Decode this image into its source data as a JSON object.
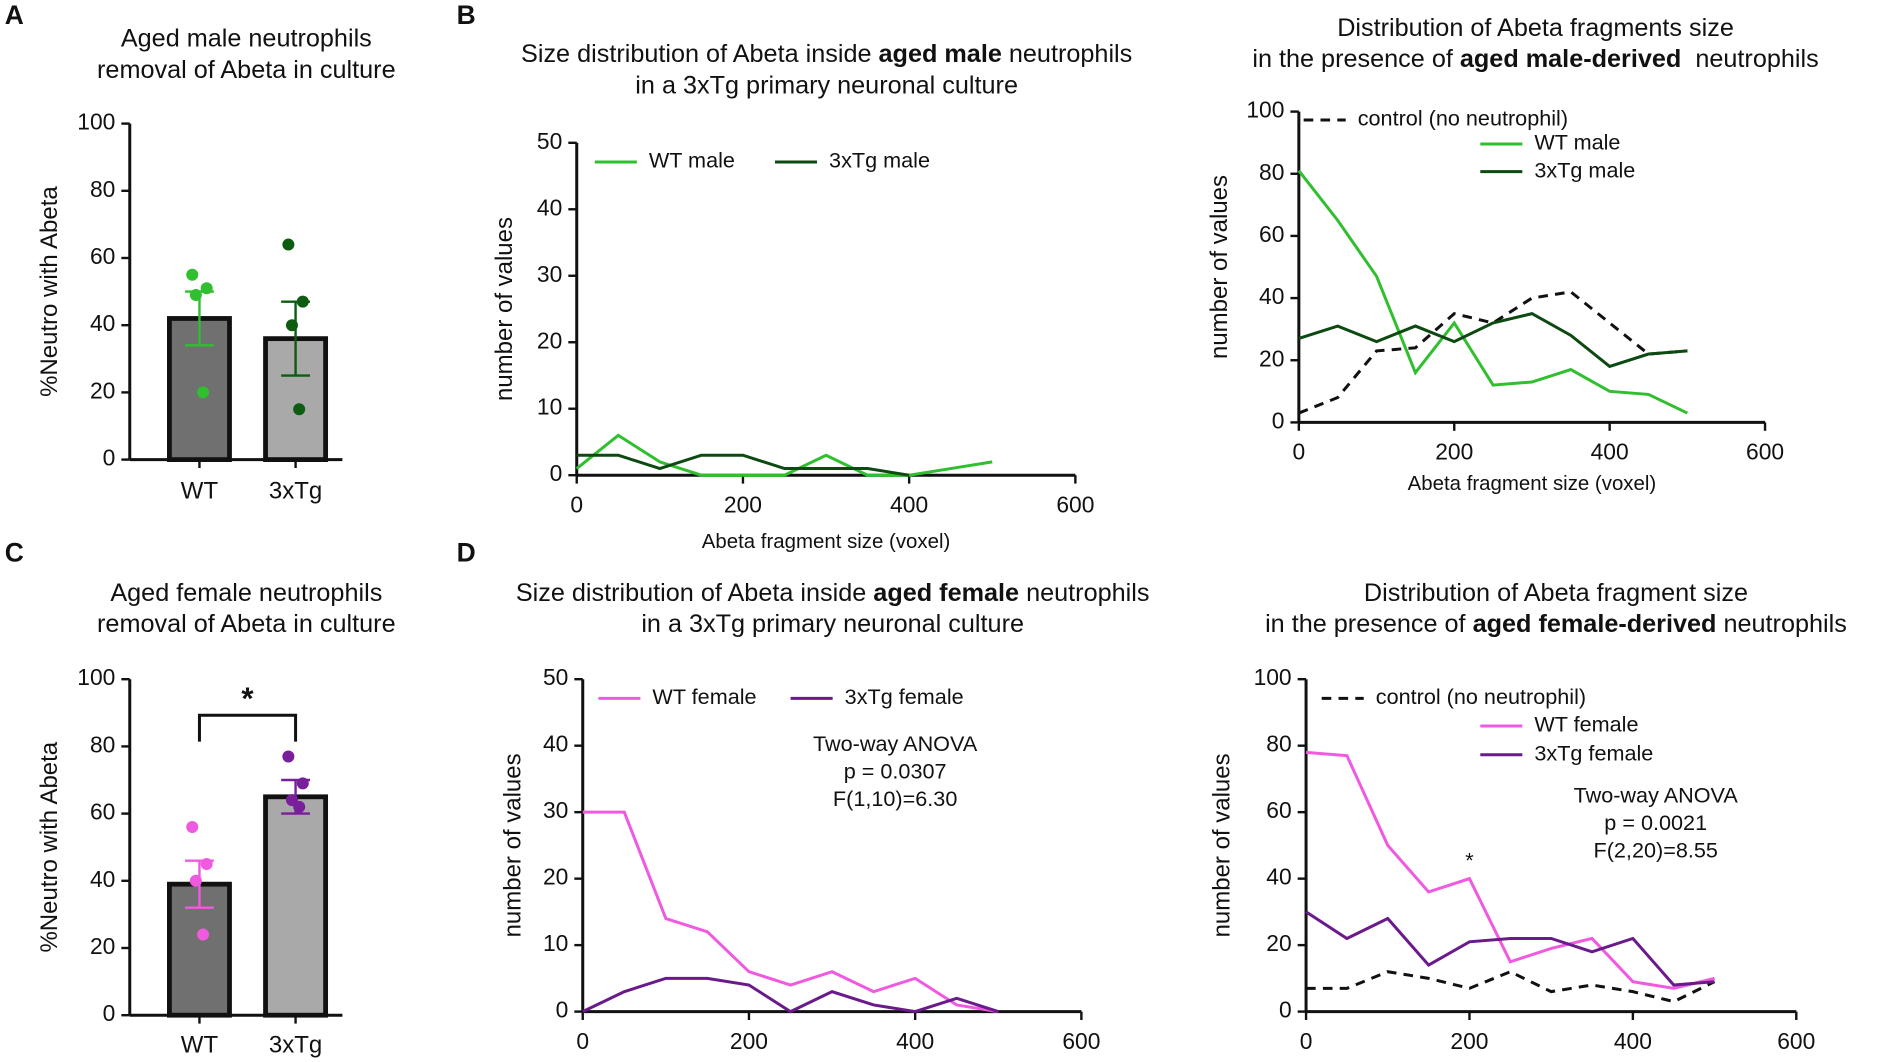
{
  "chart_data": [
    {
      "type": "bar",
      "panel_label": "A",
      "title_lines": [
        [
          {
            "text": "Aged male neutrophils"
          }
        ],
        [
          {
            "text": "removal of Abeta in culture"
          }
        ]
      ],
      "y_label": "%Neutro with Abeta",
      "categories": [
        "WT",
        "3xTg"
      ],
      "values": [
        42,
        36
      ],
      "errors": [
        8,
        11
      ],
      "bar_colors": [
        "#707070",
        "#a9a9a9"
      ],
      "colors": [
        "#2fbf2f",
        "#0d5c12"
      ],
      "points": [
        [
          55,
          51,
          49,
          20
        ],
        [
          64,
          47,
          40,
          15
        ]
      ],
      "ylim": [
        0,
        100
      ],
      "yticks": [
        0,
        20,
        40,
        60,
        80,
        100
      ]
    },
    {
      "type": "line",
      "panel_label": "B",
      "title_lines": [
        [
          {
            "text": "Size distribution of Abeta inside "
          },
          {
            "text": "aged male",
            "bold": true
          },
          {
            "text": " neutrophils"
          }
        ],
        [
          {
            "text": "in a 3xTg primary neuronal culture"
          }
        ]
      ],
      "x_label": "Abeta fragment size (voxel)",
      "y_label": "number of values",
      "x": [
        0,
        50,
        100,
        150,
        200,
        250,
        300,
        350,
        400,
        450,
        500
      ],
      "series": [
        {
          "name": "WT male",
          "color": "#2fbf2f",
          "values": [
            1,
            6,
            2,
            0,
            0,
            0,
            3,
            0,
            0,
            1,
            2
          ]
        },
        {
          "name": "3xTg male",
          "color": "#0d4a12",
          "values": [
            3,
            3,
            1,
            3,
            3,
            1,
            1,
            1,
            0,
            null,
            null
          ]
        }
      ],
      "xlim": [
        0,
        600
      ],
      "xticks": [
        0,
        200,
        400,
        600
      ],
      "ylim": [
        0,
        50
      ],
      "yticks": [
        0,
        10,
        20,
        30,
        40,
        50
      ]
    },
    {
      "type": "line",
      "title_lines": [
        [
          {
            "text": "Distribution of Abeta fragments size"
          }
        ],
        [
          {
            "text": "in the presence of "
          },
          {
            "text": "aged male-derived",
            "bold": true
          },
          {
            "text": "  neutrophils"
          }
        ]
      ],
      "x_label": "Abeta fragment size (voxel)",
      "y_label": "number of values",
      "x": [
        0,
        50,
        100,
        150,
        200,
        250,
        300,
        350,
        400,
        450,
        500
      ],
      "series": [
        {
          "name": "control (no neutrophil)",
          "color": "#111111",
          "dash": true,
          "values": [
            3,
            8,
            23,
            24,
            35,
            32,
            40,
            42,
            32,
            22,
            23
          ]
        },
        {
          "name": "WT male",
          "color": "#2fbf2f",
          "values": [
            81,
            65,
            47,
            16,
            32,
            12,
            13,
            17,
            10,
            9,
            3
          ]
        },
        {
          "name": "3xTg male",
          "color": "#0d4a12",
          "values": [
            27,
            31,
            26,
            31,
            26,
            32,
            35,
            28,
            18,
            22,
            23
          ]
        }
      ],
      "xlim": [
        0,
        600
      ],
      "xticks": [
        0,
        200,
        400,
        600
      ],
      "ylim": [
        0,
        100
      ],
      "yticks": [
        0,
        20,
        40,
        60,
        80,
        100
      ]
    },
    {
      "type": "bar",
      "panel_label": "C",
      "title_lines": [
        [
          {
            "text": "Aged female neutrophils"
          }
        ],
        [
          {
            "text": "removal of Abeta in culture"
          }
        ]
      ],
      "y_label": "%Neutro with Abeta",
      "categories": [
        "WT",
        "3xTg"
      ],
      "values": [
        39,
        65
      ],
      "errors": [
        7,
        5
      ],
      "bar_colors": [
        "#707070",
        "#a9a9a9"
      ],
      "colors": [
        "#f05ae0",
        "#7a1f9c"
      ],
      "points": [
        [
          56,
          45,
          40,
          24
        ],
        [
          77,
          69,
          64,
          62
        ]
      ],
      "significance": "*",
      "ylim": [
        0,
        100
      ],
      "yticks": [
        0,
        20,
        40,
        60,
        80,
        100
      ]
    },
    {
      "type": "line",
      "panel_label": "D",
      "title_lines": [
        [
          {
            "text": "Size distribution of Abeta inside "
          },
          {
            "text": "aged female",
            "bold": true
          },
          {
            "text": " neutrophils"
          }
        ],
        [
          {
            "text": "in a 3xTg primary neuronal culture"
          }
        ]
      ],
      "y_label": "number of values",
      "annotations": [
        "Two-way ANOVA",
        "p = 0.0307",
        "F(1,10)=6.30"
      ],
      "x": [
        0,
        50,
        100,
        150,
        200,
        250,
        300,
        350,
        400,
        450,
        500
      ],
      "series": [
        {
          "name": "WT female",
          "color": "#f05ae0",
          "values": [
            30,
            30,
            14,
            12,
            6,
            4,
            6,
            3,
            5,
            1,
            0
          ]
        },
        {
          "name": "3xTg female",
          "color": "#6a1a8a",
          "values": [
            0,
            3,
            5,
            5,
            4,
            0,
            3,
            1,
            0,
            2,
            0
          ]
        }
      ],
      "xlim": [
        0,
        600
      ],
      "xticks": [
        0,
        200,
        400,
        600
      ],
      "ylim": [
        0,
        50
      ],
      "yticks": [
        0,
        10,
        20,
        30,
        40,
        50
      ]
    },
    {
      "type": "line",
      "title_lines": [
        [
          {
            "text": "Distribution of Abeta fragment size"
          }
        ],
        [
          {
            "text": "in the presence of "
          },
          {
            "text": "aged female-derived",
            "bold": true
          },
          {
            "text": " neutrophils"
          }
        ]
      ],
      "y_label": "number of values",
      "annotations": [
        "Two-way ANOVA",
        "p = 0.0021",
        "F(2,20)=8.55"
      ],
      "marker_label": "*",
      "x": [
        0,
        50,
        100,
        150,
        200,
        250,
        300,
        350,
        400,
        450,
        500
      ],
      "series": [
        {
          "name": "control (no neutrophil)",
          "color": "#111111",
          "dash": true,
          "values": [
            7,
            7,
            12,
            10,
            7,
            12,
            6,
            8,
            6,
            3,
            9
          ]
        },
        {
          "name": "WT female",
          "color": "#f05ae0",
          "values": [
            78,
            77,
            50,
            36,
            40,
            15,
            19,
            22,
            9,
            7,
            10
          ]
        },
        {
          "name": "3xTg female",
          "color": "#6a1a8a",
          "values": [
            30,
            22,
            28,
            14,
            21,
            22,
            22,
            18,
            22,
            8,
            9
          ]
        }
      ],
      "xlim": [
        0,
        600
      ],
      "xticks": [
        0,
        200,
        400,
        600
      ],
      "ylim": [
        0,
        100
      ],
      "yticks": [
        0,
        20,
        40,
        60,
        80,
        100
      ]
    }
  ]
}
